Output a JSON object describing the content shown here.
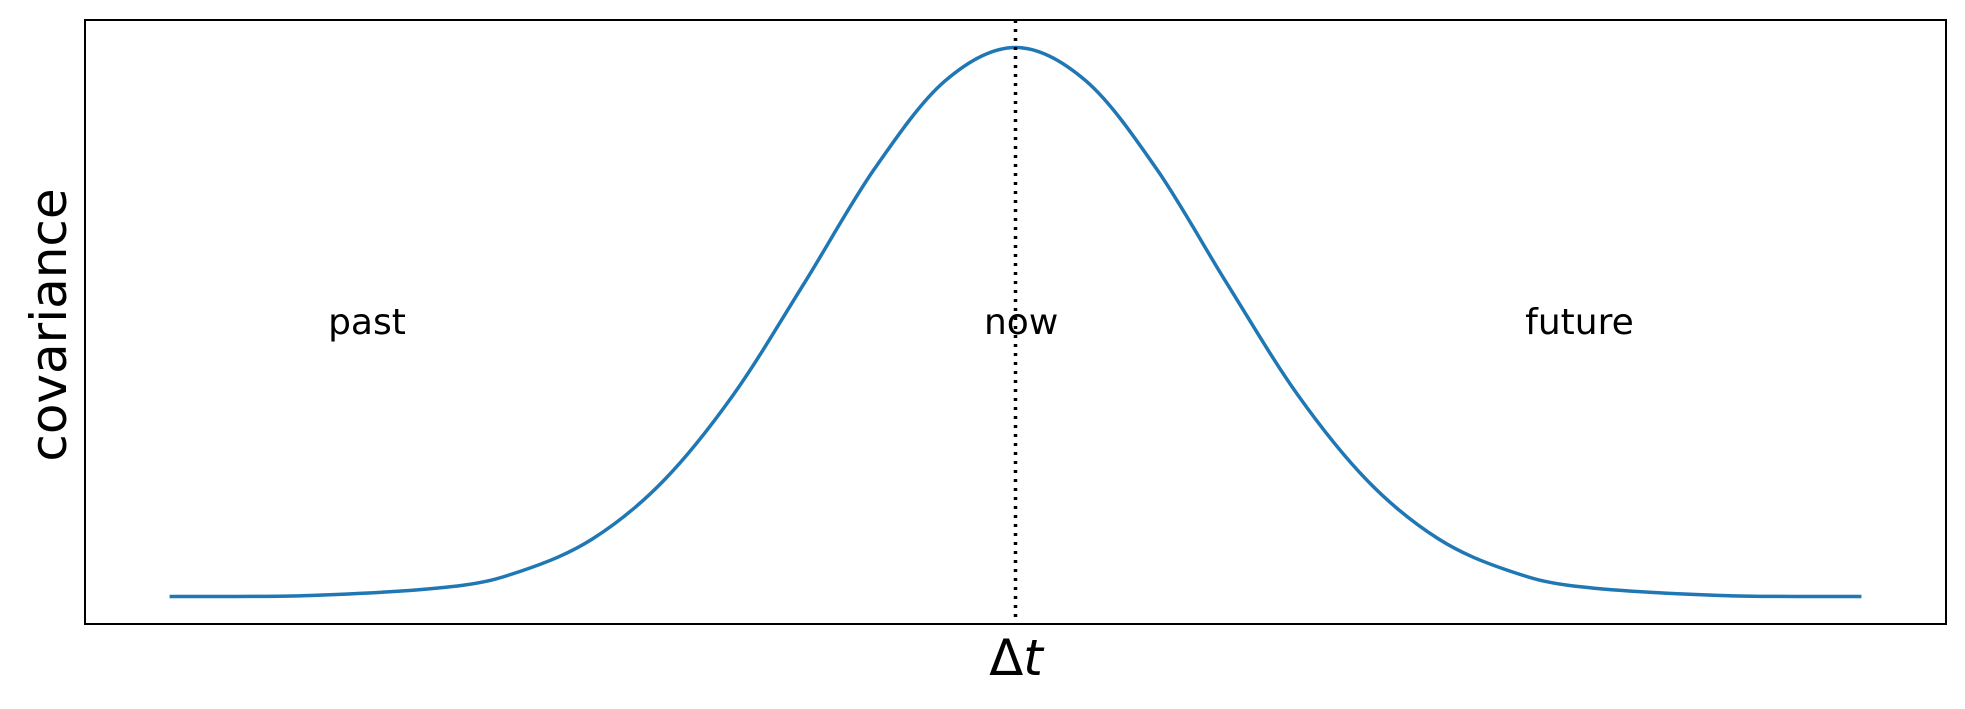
{
  "chart_data": {
    "type": "line",
    "title": "",
    "xlabel_symbol": "Δ",
    "xlabel_var": "t",
    "ylabel": "covariance",
    "xlim": [
      -3.3,
      3.3
    ],
    "ylim": [
      -0.05,
      1.05
    ],
    "grid": false,
    "ticks_shown": false,
    "series": [
      {
        "color": "#1f77b4",
        "x": [
          -3.0,
          -2.5,
          -2.0,
          -1.75,
          -1.5,
          -1.25,
          -1.0,
          -0.75,
          -0.5,
          -0.25,
          0.0,
          0.25,
          0.5,
          0.75,
          1.0,
          1.25,
          1.5,
          1.75,
          2.0,
          2.5,
          3.0
        ],
        "y": [
          0.0,
          0.002,
          0.018,
          0.047,
          0.105,
          0.21,
          0.368,
          0.57,
          0.779,
          0.939,
          1.0,
          0.939,
          0.779,
          0.57,
          0.368,
          0.21,
          0.105,
          0.047,
          0.018,
          0.002,
          0.0
        ]
      }
    ],
    "vline": {
      "x": 0.0,
      "style": "dotted",
      "color": "#000000"
    },
    "annotations": [
      {
        "text": "past",
        "x": -2.3,
        "y": 0.5
      },
      {
        "text": "now",
        "x": 0.02,
        "y": 0.5
      },
      {
        "text": "future",
        "x": 2.0,
        "y": 0.5
      }
    ]
  }
}
